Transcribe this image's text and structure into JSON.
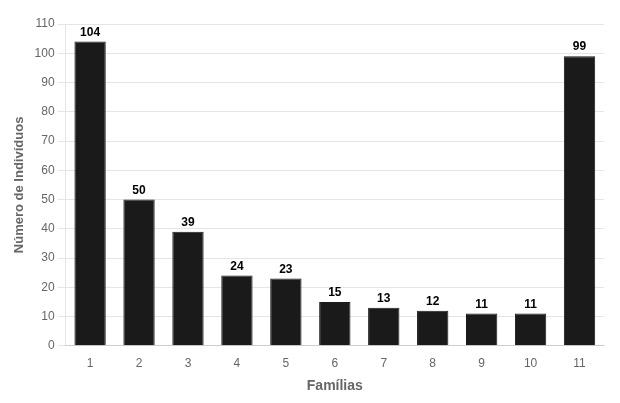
{
  "chart_data": {
    "type": "bar",
    "categories": [
      "1",
      "2",
      "3",
      "4",
      "5",
      "6",
      "7",
      "8",
      "9",
      "10",
      "11"
    ],
    "values": [
      104,
      50,
      39,
      24,
      23,
      15,
      13,
      12,
      11,
      11,
      99
    ],
    "color": "#1a1a1a",
    "xlabel": "Famílias",
    "ylabel": "Número de Indivíduos",
    "ylim": [
      0,
      110
    ],
    "yticks": [
      0,
      10,
      20,
      30,
      40,
      50,
      60,
      70,
      80,
      90,
      100,
      110
    ],
    "grid": true,
    "data_labels": true
  }
}
